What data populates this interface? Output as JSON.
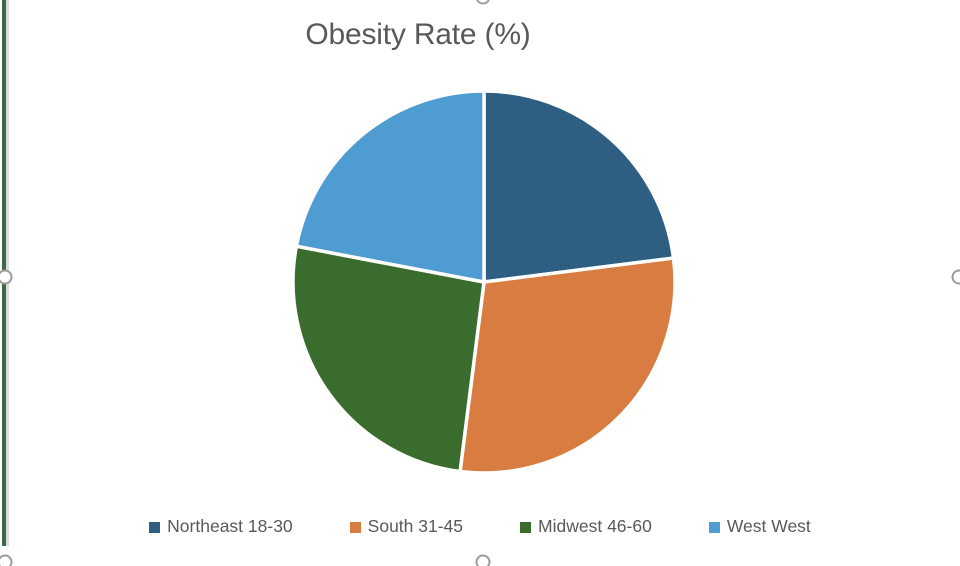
{
  "colors": {
    "title_text": "#595959",
    "legend_text": "#595959",
    "selection_handle_border": "#9B9B9B",
    "left_border_green": "#3E6A45",
    "left_border_gray": "#DCDCDC",
    "slice_divider": "#FFFFFF",
    "background": "#FFFFFF"
  },
  "chart_data": {
    "type": "pie",
    "title": "Obesity Rate (%)",
    "units": "percent",
    "start_angle_deg": 0,
    "direction": "clockwise",
    "legend_position": "bottom",
    "grid": false,
    "series": [
      {
        "label": "Northeast 18-30",
        "value": 23,
        "color": "#2E5F82",
        "angle_deg": 82.8
      },
      {
        "label": "South 31-45",
        "value": 29,
        "color": "#D87C42",
        "angle_deg": 104.4
      },
      {
        "label": "Midwest 46-60",
        "value": 26,
        "color": "#3A6C2D",
        "angle_deg": 93.6
      },
      {
        "label": "West West",
        "value": 22,
        "color": "#4F9CD3",
        "angle_deg": 79.2
      }
    ]
  }
}
